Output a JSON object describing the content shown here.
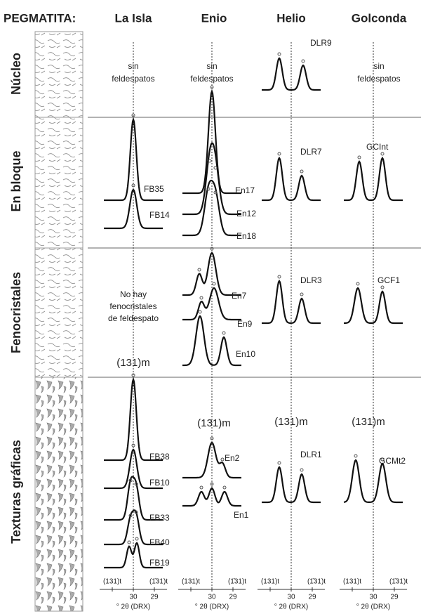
{
  "header": {
    "label": "PEGMATITA:",
    "columns": [
      "La Isla",
      "Enio",
      "Helio",
      "Golconda"
    ]
  },
  "rows": [
    "Núcleo",
    "En bloque",
    "Fenocristales",
    "Texturas gráficas"
  ],
  "nucleo": {
    "la_isla": [
      "sin",
      "feldespatos"
    ],
    "enio": [
      "sin",
      "feldespatos"
    ],
    "helio": "DLR9",
    "golconda": [
      "sin",
      "feldespatos"
    ]
  },
  "en_bloque": {
    "la_isla": [
      "FB35",
      "FB14"
    ],
    "enio": [
      "En17",
      "En12",
      "En18"
    ],
    "helio": "DLR7",
    "golconda": "GCInt"
  },
  "fenocristales": {
    "la_isla": {
      "note": [
        "No hay",
        "fenocristales",
        "de feldespato"
      ],
      "peak": "(131)m"
    },
    "enio": [
      "En7",
      "En9",
      "En10"
    ],
    "helio": "DLR3",
    "golconda": "GCF1"
  },
  "texturas_graficas": {
    "la_isla": [
      "FB38",
      "FB10",
      "FB33",
      "FB40",
      "FB19"
    ],
    "enio": {
      "peak": "(131)m",
      "samples": [
        "En2",
        "En1"
      ]
    },
    "helio": {
      "peak": "(131)m",
      "sample": "DLR1"
    },
    "golconda": {
      "peak": "(131)m",
      "sample": "GCMt2"
    }
  },
  "axis": {
    "left_peak": "(131)t",
    "right_peak": "(1̄31)t",
    "ticks": [
      "30",
      "29"
    ],
    "label": "° 2θ (DRX)"
  }
}
